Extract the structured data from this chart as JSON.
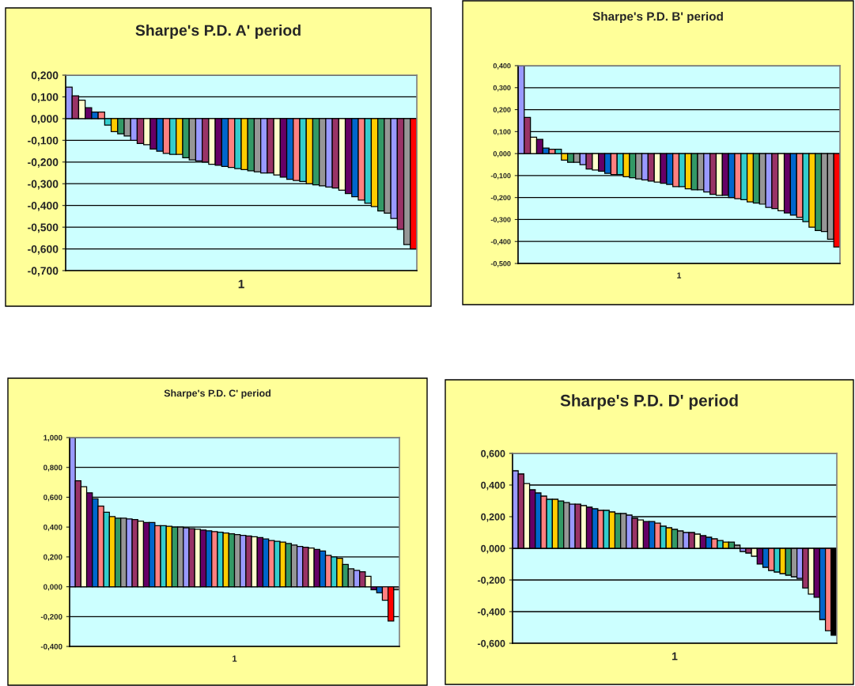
{
  "chart_data": [
    {
      "type": "bar",
      "title": "Sharpe's P.D. A' period",
      "xlabel": "1",
      "grid": "y",
      "legend": false,
      "categories": [
        null,
        null,
        null,
        null,
        null,
        null,
        null,
        null,
        null,
        null,
        null,
        null,
        null,
        null,
        null,
        null,
        null,
        null,
        null,
        null,
        null,
        null,
        null,
        null,
        null,
        null,
        null,
        null,
        null,
        null,
        null,
        null,
        null,
        null,
        null,
        null,
        null,
        null,
        null,
        null,
        null,
        null,
        null,
        null,
        null,
        null,
        null,
        null,
        null,
        null,
        null,
        null,
        null,
        null
      ],
      "values": [
        0.145,
        0.105,
        0.085,
        0.05,
        0.03,
        0.03,
        -0.03,
        -0.06,
        -0.07,
        -0.08,
        -0.1,
        -0.115,
        -0.12,
        -0.14,
        -0.15,
        -0.16,
        -0.165,
        -0.165,
        -0.18,
        -0.19,
        -0.195,
        -0.2,
        -0.21,
        -0.215,
        -0.22,
        -0.225,
        -0.23,
        -0.235,
        -0.24,
        -0.245,
        -0.25,
        -0.25,
        -0.26,
        -0.27,
        -0.28,
        -0.285,
        -0.29,
        -0.3,
        -0.305,
        -0.31,
        -0.315,
        -0.32,
        -0.33,
        -0.345,
        -0.36,
        -0.375,
        -0.39,
        -0.405,
        -0.425,
        -0.435,
        -0.46,
        -0.51,
        -0.58,
        -0.6
      ],
      "colors": [
        "#9999ff",
        "#993366",
        "#ffffcc",
        "#660066",
        "#0066cc",
        "#ff8080",
        "#33cccc",
        "#ffcc00",
        "#339966",
        "#969696",
        "#9999ff",
        "#993366",
        "#ffffcc",
        "#660066",
        "#0066cc",
        "#ff8080",
        "#33cccc",
        "#ffcc00",
        "#339966",
        "#969696",
        "#9999ff",
        "#993366",
        "#ffffcc",
        "#660066",
        "#0066cc",
        "#ff8080",
        "#33cccc",
        "#ffcc00",
        "#339966",
        "#969696",
        "#9999ff",
        "#993366",
        "#ffffcc",
        "#660066",
        "#0066cc",
        "#ff8080",
        "#33cccc",
        "#ffcc00",
        "#339966",
        "#969696",
        "#9999ff",
        "#993366",
        "#ffffcc",
        "#660066",
        "#0066cc",
        "#ff8080",
        "#33cccc",
        "#ffcc00",
        "#339966",
        "#969696",
        "#9999ff",
        "#993366",
        "#969696",
        "#ff0000"
      ],
      "ylim": [
        -0.7,
        0.2
      ],
      "yticks": [
        {
          "value": -0.7,
          "label": "-0,700"
        },
        {
          "value": -0.6,
          "label": "-0,600"
        },
        {
          "value": -0.5,
          "label": "-0,500"
        },
        {
          "value": -0.4,
          "label": "-0,400"
        },
        {
          "value": -0.3,
          "label": "-0,300"
        },
        {
          "value": -0.2,
          "label": "-0,200"
        },
        {
          "value": -0.1,
          "label": "-0,100"
        },
        {
          "value": 0,
          "label": "0,000"
        },
        {
          "value": 0.1,
          "label": "0,100"
        },
        {
          "value": 0.2,
          "label": "0,200"
        }
      ]
    },
    {
      "type": "bar",
      "title": "Sharpe's P.D. B' period",
      "xlabel": "1",
      "grid": "y",
      "legend": false,
      "categories": [
        null,
        null,
        null,
        null,
        null,
        null,
        null,
        null,
        null,
        null,
        null,
        null,
        null,
        null,
        null,
        null,
        null,
        null,
        null,
        null,
        null,
        null,
        null,
        null,
        null,
        null,
        null,
        null,
        null,
        null,
        null,
        null,
        null,
        null,
        null,
        null,
        null,
        null,
        null,
        null,
        null,
        null,
        null,
        null,
        null,
        null,
        null,
        null,
        null,
        null,
        null,
        null
      ],
      "values": [
        0.4,
        0.165,
        0.075,
        0.065,
        0.025,
        0.02,
        0.02,
        -0.03,
        -0.04,
        -0.04,
        -0.05,
        -0.07,
        -0.075,
        -0.08,
        -0.09,
        -0.095,
        -0.095,
        -0.105,
        -0.11,
        -0.115,
        -0.12,
        -0.125,
        -0.13,
        -0.135,
        -0.14,
        -0.15,
        -0.15,
        -0.16,
        -0.165,
        -0.165,
        -0.175,
        -0.185,
        -0.19,
        -0.19,
        -0.2,
        -0.205,
        -0.21,
        -0.22,
        -0.225,
        -0.23,
        -0.245,
        -0.25,
        -0.26,
        -0.27,
        -0.28,
        -0.29,
        -0.31,
        -0.335,
        -0.35,
        -0.355,
        -0.39,
        -0.425
      ],
      "colors": [
        "#9999ff",
        "#993366",
        "#ffffcc",
        "#660066",
        "#0066cc",
        "#ff8080",
        "#33cccc",
        "#ffcc00",
        "#339966",
        "#969696",
        "#9999ff",
        "#993366",
        "#ffffcc",
        "#660066",
        "#0066cc",
        "#ff8080",
        "#33cccc",
        "#ffcc00",
        "#339966",
        "#969696",
        "#9999ff",
        "#993366",
        "#ffffcc",
        "#660066",
        "#0066cc",
        "#ff8080",
        "#33cccc",
        "#ffcc00",
        "#339966",
        "#969696",
        "#9999ff",
        "#993366",
        "#ffffcc",
        "#660066",
        "#0066cc",
        "#ff8080",
        "#33cccc",
        "#ffcc00",
        "#339966",
        "#969696",
        "#9999ff",
        "#993366",
        "#ffffcc",
        "#660066",
        "#0066cc",
        "#ff8080",
        "#33cccc",
        "#ffcc00",
        "#339966",
        "#969696",
        "#969696",
        "#ff0000"
      ],
      "ylim": [
        -0.5,
        0.4
      ],
      "yticks": [
        {
          "value": -0.5,
          "label": "-0,500"
        },
        {
          "value": -0.4,
          "label": "-0,400"
        },
        {
          "value": -0.3,
          "label": "-0,300"
        },
        {
          "value": -0.2,
          "label": "-0,200"
        },
        {
          "value": -0.1,
          "label": "-0,100"
        },
        {
          "value": 0,
          "label": "0,000"
        },
        {
          "value": 0.1,
          "label": "0,100"
        },
        {
          "value": 0.2,
          "label": "0,200"
        },
        {
          "value": 0.3,
          "label": "0,300"
        },
        {
          "value": 0.4,
          "label": "0,400"
        }
      ]
    },
    {
      "type": "bar",
      "title": "Sharpe's P.D. C' period",
      "xlabel": "1",
      "grid": "y",
      "legend": false,
      "categories": [
        null,
        null,
        null,
        null,
        null,
        null,
        null,
        null,
        null,
        null,
        null,
        null,
        null,
        null,
        null,
        null,
        null,
        null,
        null,
        null,
        null,
        null,
        null,
        null,
        null,
        null,
        null,
        null,
        null,
        null,
        null,
        null,
        null,
        null,
        null,
        null,
        null,
        null,
        null,
        null,
        null,
        null,
        null,
        null,
        null,
        null,
        null,
        null,
        null,
        null,
        null,
        null,
        null,
        null,
        null,
        null,
        null,
        null
      ],
      "values": [
        1.0,
        0.71,
        0.67,
        0.63,
        0.59,
        0.54,
        0.5,
        0.47,
        0.46,
        0.46,
        0.455,
        0.45,
        0.44,
        0.43,
        0.43,
        0.41,
        0.41,
        0.405,
        0.4,
        0.4,
        0.395,
        0.39,
        0.385,
        0.38,
        0.375,
        0.37,
        0.365,
        0.36,
        0.355,
        0.35,
        0.345,
        0.34,
        0.335,
        0.33,
        0.32,
        0.31,
        0.305,
        0.3,
        0.29,
        0.28,
        0.27,
        0.265,
        0.26,
        0.25,
        0.24,
        0.21,
        0.2,
        0.19,
        0.15,
        0.12,
        0.11,
        0.1,
        0.07,
        -0.02,
        -0.04,
        -0.09,
        -0.23,
        -0.02
      ],
      "colors": [
        "#9999ff",
        "#993366",
        "#ffffcc",
        "#660066",
        "#0066cc",
        "#ff8080",
        "#33cccc",
        "#ffcc00",
        "#339966",
        "#969696",
        "#9999ff",
        "#993366",
        "#ffffcc",
        "#660066",
        "#0066cc",
        "#ff8080",
        "#33cccc",
        "#ffcc00",
        "#339966",
        "#969696",
        "#9999ff",
        "#993366",
        "#ffffcc",
        "#660066",
        "#0066cc",
        "#ff8080",
        "#33cccc",
        "#ffcc00",
        "#339966",
        "#969696",
        "#9999ff",
        "#993366",
        "#ffffcc",
        "#660066",
        "#0066cc",
        "#ff8080",
        "#33cccc",
        "#ffcc00",
        "#339966",
        "#969696",
        "#9999ff",
        "#993366",
        "#ffffcc",
        "#660066",
        "#0066cc",
        "#ff8080",
        "#33cccc",
        "#ffcc00",
        "#339966",
        "#969696",
        "#9999ff",
        "#993366",
        "#ffffcc",
        "#660066",
        "#0066cc",
        "#ff8080",
        "#ff0000",
        "#969696"
      ],
      "ylim": [
        -0.4,
        1.0
      ],
      "yticks": [
        {
          "value": -0.4,
          "label": "-0,400"
        },
        {
          "value": -0.2,
          "label": "-0,200"
        },
        {
          "value": 0,
          "label": "0,000"
        },
        {
          "value": 0.2,
          "label": "0,200"
        },
        {
          "value": 0.4,
          "label": "0,400"
        },
        {
          "value": 0.6,
          "label": "0,600"
        },
        {
          "value": 0.8,
          "label": "0,800"
        },
        {
          "value": 1.0,
          "label": "1,000"
        }
      ]
    },
    {
      "type": "bar",
      "title": "Sharpe's P.D. D' period",
      "xlabel": "1",
      "grid": "y",
      "legend": false,
      "categories": [
        null,
        null,
        null,
        null,
        null,
        null,
        null,
        null,
        null,
        null,
        null,
        null,
        null,
        null,
        null,
        null,
        null,
        null,
        null,
        null,
        null,
        null,
        null,
        null,
        null,
        null,
        null,
        null,
        null,
        null,
        null,
        null,
        null,
        null,
        null,
        null,
        null,
        null,
        null,
        null,
        null,
        null,
        null,
        null,
        null,
        null,
        null,
        null,
        null,
        null,
        null,
        null,
        null,
        null,
        null,
        null,
        null
      ],
      "values": [
        0.49,
        0.47,
        0.41,
        0.37,
        0.35,
        0.33,
        0.31,
        0.31,
        0.3,
        0.29,
        0.28,
        0.28,
        0.27,
        0.26,
        0.25,
        0.24,
        0.24,
        0.23,
        0.22,
        0.22,
        0.21,
        0.19,
        0.18,
        0.17,
        0.17,
        0.16,
        0.14,
        0.13,
        0.12,
        0.11,
        0.1,
        0.1,
        0.09,
        0.08,
        0.07,
        0.06,
        0.05,
        0.04,
        0.04,
        0.02,
        -0.02,
        -0.03,
        -0.05,
        -0.1,
        -0.12,
        -0.14,
        -0.15,
        -0.16,
        -0.17,
        -0.18,
        -0.19,
        -0.25,
        -0.29,
        -0.31,
        -0.45,
        -0.52,
        -0.55
      ],
      "colors": [
        "#9999ff",
        "#993366",
        "#ffffcc",
        "#660066",
        "#0066cc",
        "#ff8080",
        "#33cccc",
        "#ffcc00",
        "#339966",
        "#969696",
        "#9999ff",
        "#993366",
        "#ffffcc",
        "#660066",
        "#0066cc",
        "#ff8080",
        "#33cccc",
        "#ffcc00",
        "#339966",
        "#969696",
        "#9999ff",
        "#993366",
        "#ffffcc",
        "#660066",
        "#0066cc",
        "#ff8080",
        "#33cccc",
        "#ffcc00",
        "#339966",
        "#969696",
        "#9999ff",
        "#993366",
        "#ffffcc",
        "#660066",
        "#0066cc",
        "#ff8080",
        "#33cccc",
        "#ffcc00",
        "#339966",
        "#969696",
        "#9999ff",
        "#993366",
        "#ffffcc",
        "#660066",
        "#0066cc",
        "#ff8080",
        "#33cccc",
        "#ffcc00",
        "#339966",
        "#969696",
        "#9999ff",
        "#993366",
        "#ffffcc",
        "#660066",
        "#0066cc",
        "#ff8080",
        "#000000"
      ],
      "ylim": [
        -0.6,
        0.6
      ],
      "yticks": [
        {
          "value": -0.6,
          "label": "-0,600"
        },
        {
          "value": -0.4,
          "label": "-0,400"
        },
        {
          "value": -0.2,
          "label": "-0,200"
        },
        {
          "value": 0,
          "label": "0,000"
        },
        {
          "value": 0.2,
          "label": "0,200"
        },
        {
          "value": 0.4,
          "label": "0,400"
        },
        {
          "value": 0.6,
          "label": "0,600"
        }
      ]
    }
  ]
}
